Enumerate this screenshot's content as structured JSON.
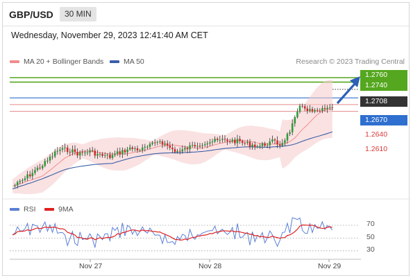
{
  "header": {
    "symbol": "GBP/USD",
    "timeframe": "30 MIN"
  },
  "datetime": "Wednesday, November 29, 2023 12:41:40 AM CET",
  "legend": {
    "ma20_label": "MA 20 + Bollinger Bands",
    "ma20_color": "#f08c8c",
    "ma50_label": "MA 50",
    "ma50_color": "#3a5ea8",
    "credit": "Research © 2023 Trading Central"
  },
  "levels": [
    {
      "value": "1.2760",
      "color": "#54a71e",
      "style": "box"
    },
    {
      "value": "1.2740",
      "color": "#54a71e",
      "style": "box"
    },
    {
      "value": "1.2708",
      "color": "#333333",
      "style": "box"
    },
    {
      "value": "1.2670",
      "color": "#2e6fcf",
      "style": "box"
    },
    {
      "value": "1.2640",
      "color": "#d9383a",
      "style": "text"
    },
    {
      "value": "1.2610",
      "color": "#d9383a",
      "style": "text"
    }
  ],
  "rsi": {
    "rsi_label": "RSI",
    "rsi_color": "#5b7fd6",
    "ma_label": "9MA",
    "ma_color": "#e02020",
    "ticks": [
      "70",
      "50",
      "30"
    ]
  },
  "x_axis": [
    "Nov 27",
    "Nov 28",
    "Nov 29"
  ]
}
